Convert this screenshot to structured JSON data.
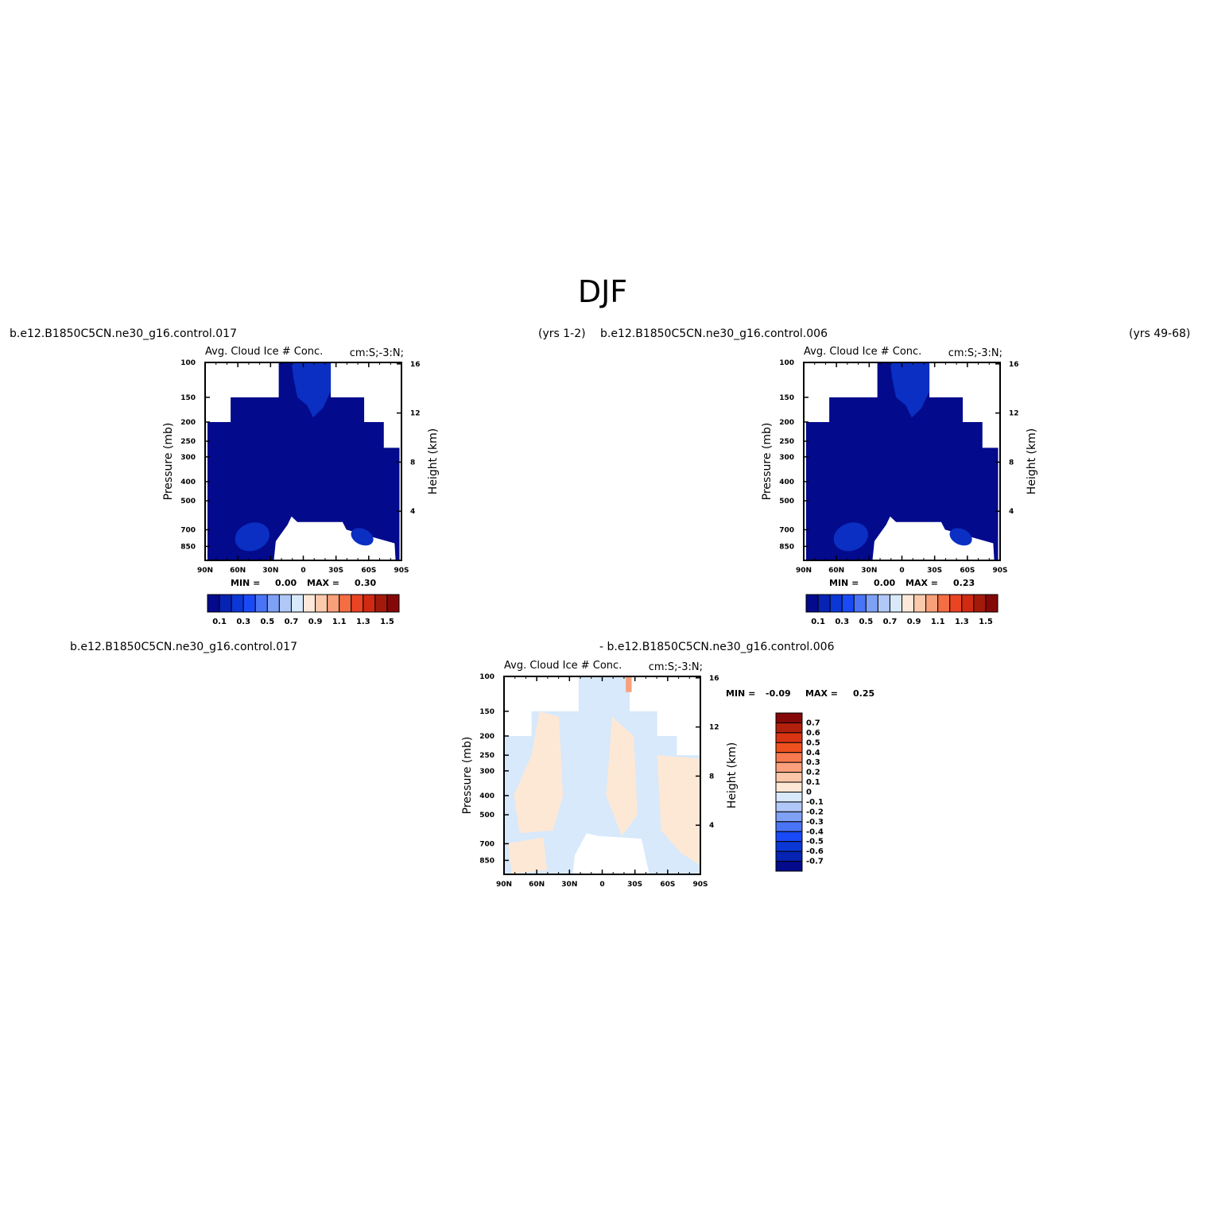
{
  "figure": {
    "season_title": "DJF",
    "top_left_case": "b.e12.B1850C5CN.ne30_g16.control.017",
    "top_left_years": "(yrs 1-2)",
    "top_right_case": "b.e12.B1850C5CN.ne30_g16.control.006",
    "top_right_years": "(yrs 49-68)",
    "bottom_left_case": "b.e12.B1850C5CN.ne30_g16.control.017",
    "bottom_right_case": "- b.e12.B1850C5CN.ne30_g16.control.006"
  },
  "chart_data": [
    {
      "type": "heatmap",
      "panel": "control.017",
      "title_left": "Avg. Cloud Ice # Conc.",
      "title_right": "cm:S;-3:N;",
      "ylabel": "Pressure (mb)",
      "y2label": "Height (km)",
      "x_ticks": [
        "90N",
        "60N",
        "30N",
        "0",
        "30S",
        "60S",
        "90S"
      ],
      "y_ticks": [
        100,
        150,
        200,
        250,
        300,
        400,
        500,
        700,
        850
      ],
      "y2_ticks": [
        4,
        8,
        12,
        16
      ],
      "min_label": "MIN =",
      "min_value": "0.00",
      "max_label": "MAX =",
      "max_value": "0.30",
      "colorbar_labels": [
        "0.1",
        "0.3",
        "0.5",
        "0.7",
        "0.9",
        "1.1",
        "1.3",
        "1.5"
      ],
      "colorbar_colors": [
        "#030a8c",
        "#0623b4",
        "#0a37d6",
        "#1a4af7",
        "#4a74f6",
        "#7ea0f5",
        "#b0c8f7",
        "#d7e9fb",
        "#fde8d9",
        "#fbc9ac",
        "#f8a07a",
        "#f56d43",
        "#eb4423",
        "#d02a12",
        "#a41a0a",
        "#850808"
      ]
    },
    {
      "type": "heatmap",
      "panel": "control.006",
      "title_left": "Avg. Cloud Ice # Conc.",
      "title_right": "cm:S;-3:N;",
      "ylabel": "Pressure (mb)",
      "y2label": "Height (km)",
      "x_ticks": [
        "90N",
        "60N",
        "30N",
        "0",
        "30S",
        "60S",
        "90S"
      ],
      "y_ticks": [
        100,
        150,
        200,
        250,
        300,
        400,
        500,
        700,
        850
      ],
      "y2_ticks": [
        4,
        8,
        12,
        16
      ],
      "min_label": "MIN =",
      "min_value": "0.00",
      "max_label": "MAX =",
      "max_value": "0.23",
      "colorbar_labels": [
        "0.1",
        "0.3",
        "0.5",
        "0.7",
        "0.9",
        "1.1",
        "1.3",
        "1.5"
      ],
      "colorbar_colors": [
        "#030a8c",
        "#0623b4",
        "#0a37d6",
        "#1a4af7",
        "#4a74f6",
        "#7ea0f5",
        "#b0c8f7",
        "#d7e9fb",
        "#fde8d9",
        "#fbc9ac",
        "#f8a07a",
        "#f56d43",
        "#eb4423",
        "#d02a12",
        "#a41a0a",
        "#850808"
      ]
    },
    {
      "type": "heatmap",
      "panel": "difference",
      "title_left": "Avg. Cloud Ice # Conc.",
      "title_right": "cm:S;-3:N;",
      "ylabel": "Pressure (mb)",
      "y2label": "Height (km)",
      "x_ticks": [
        "90N",
        "60N",
        "30N",
        "0",
        "30S",
        "60S",
        "90S"
      ],
      "y_ticks": [
        100,
        150,
        200,
        250,
        300,
        400,
        500,
        700,
        850
      ],
      "y2_ticks": [
        4,
        8,
        12,
        16
      ],
      "min_label": "MIN =",
      "min_value": "-0.09",
      "max_label": "MAX =",
      "max_value": "0.25",
      "colorbar_labels": [
        "0.7",
        "0.6",
        "0.5",
        "0.4",
        "0.3",
        "0.2",
        "0.1",
        "0",
        "-0.1",
        "-0.2",
        "-0.3",
        "-0.4",
        "-0.5",
        "-0.6",
        "-0.7"
      ],
      "colorbar_colors": [
        "#850808",
        "#b0200c",
        "#d83414",
        "#f0501e",
        "#f87a4e",
        "#fba07c",
        "#fcc6a8",
        "#fde8d6",
        "#d7e9fb",
        "#b0c8f7",
        "#7ea0f5",
        "#4a74f6",
        "#1a4af7",
        "#0a37d6",
        "#0623b4",
        "#030a8c"
      ]
    }
  ]
}
